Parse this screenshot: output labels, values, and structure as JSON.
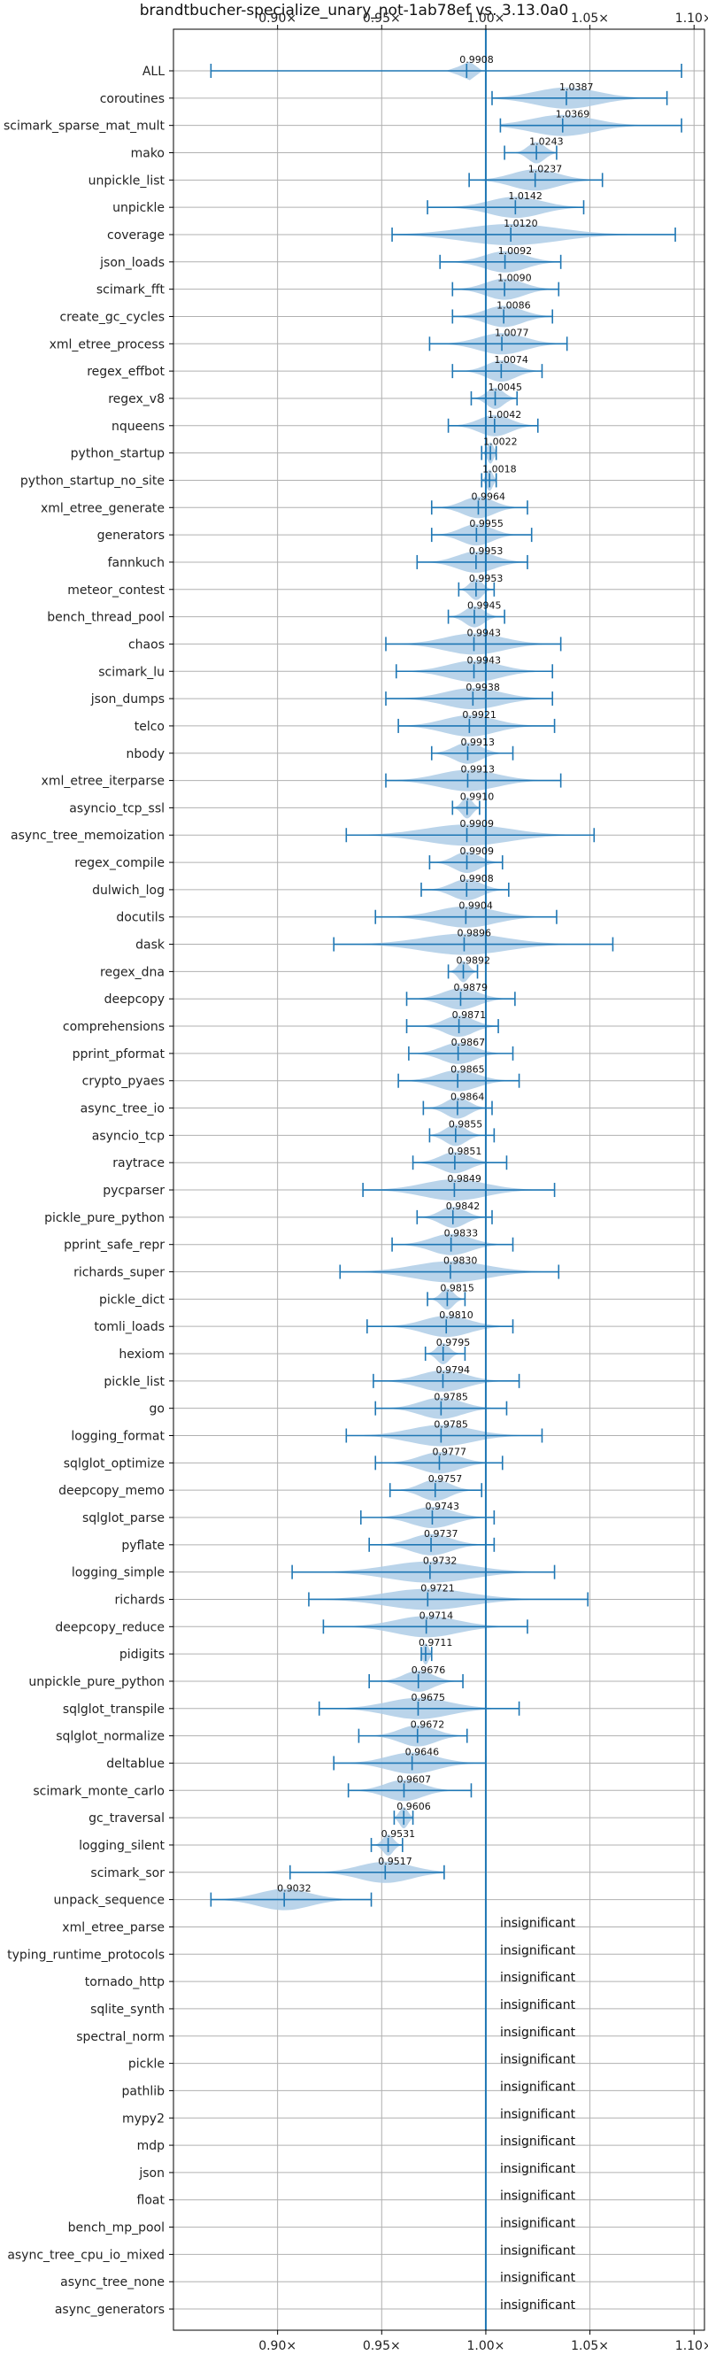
{
  "chart_data": {
    "type": "violin",
    "title": "brandtbucher-specialize_unary_not-1ab78ef vs. 3.13.0a0",
    "xlim": [
      0.85,
      1.105
    ],
    "x_ticks": [
      0.9,
      0.95,
      1.0,
      1.05,
      1.1
    ],
    "x_tick_labels": [
      "0.90×",
      "0.95×",
      "1.00×",
      "1.05×",
      "1.10×"
    ],
    "reference_line": 1.0,
    "grid": true,
    "colors": {
      "violin": "#aecde6",
      "line": "#1f77b4",
      "grid": "#b0b0b0"
    },
    "insignificant_text": "insignificant",
    "benchmarks": [
      {
        "name": "ALL",
        "label": "0.9908",
        "median": 0.9908,
        "min": 0.868,
        "max": 1.094,
        "spread": 0.006
      },
      {
        "name": "coroutines",
        "label": "1.0387",
        "median": 1.0387,
        "min": 1.003,
        "max": 1.087,
        "spread": 0.03
      },
      {
        "name": "scimark_sparse_mat_mult",
        "label": "1.0369",
        "median": 1.0369,
        "min": 1.007,
        "max": 1.094,
        "spread": 0.03
      },
      {
        "name": "mako",
        "label": "1.0243",
        "median": 1.0243,
        "min": 1.009,
        "max": 1.034,
        "spread": 0.008
      },
      {
        "name": "unpickle_list",
        "label": "1.0237",
        "median": 1.0237,
        "min": 0.992,
        "max": 1.056,
        "spread": 0.022
      },
      {
        "name": "unpickle",
        "label": "1.0142",
        "median": 1.0142,
        "min": 0.972,
        "max": 1.047,
        "spread": 0.025
      },
      {
        "name": "coverage",
        "label": "1.0120",
        "median": 1.012,
        "min": 0.955,
        "max": 1.091,
        "spread": 0.045
      },
      {
        "name": "json_loads",
        "label": "1.0092",
        "median": 1.0092,
        "min": 0.978,
        "max": 1.036,
        "spread": 0.02
      },
      {
        "name": "scimark_fft",
        "label": "1.0090",
        "median": 1.009,
        "min": 0.984,
        "max": 1.035,
        "spread": 0.018
      },
      {
        "name": "create_gc_cycles",
        "label": "1.0086",
        "median": 1.0086,
        "min": 0.984,
        "max": 1.032,
        "spread": 0.018
      },
      {
        "name": "xml_etree_process",
        "label": "1.0077",
        "median": 1.0077,
        "min": 0.973,
        "max": 1.039,
        "spread": 0.022
      },
      {
        "name": "regex_effbot",
        "label": "1.0074",
        "median": 1.0074,
        "min": 0.984,
        "max": 1.027,
        "spread": 0.014
      },
      {
        "name": "regex_v8",
        "label": "1.0045",
        "median": 1.0045,
        "min": 0.993,
        "max": 1.015,
        "spread": 0.008
      },
      {
        "name": "nqueens",
        "label": "1.0042",
        "median": 1.0042,
        "min": 0.982,
        "max": 1.025,
        "spread": 0.015
      },
      {
        "name": "python_startup",
        "label": "1.0022",
        "median": 1.0022,
        "min": 0.998,
        "max": 1.005,
        "spread": 0.003
      },
      {
        "name": "python_startup_no_site",
        "label": "1.0018",
        "median": 1.0018,
        "min": 0.998,
        "max": 1.005,
        "spread": 0.003
      },
      {
        "name": "xml_etree_generate",
        "label": "0.9964",
        "median": 0.9964,
        "min": 0.974,
        "max": 1.02,
        "spread": 0.015
      },
      {
        "name": "generators",
        "label": "0.9955",
        "median": 0.9955,
        "min": 0.974,
        "max": 1.022,
        "spread": 0.015
      },
      {
        "name": "fannkuch",
        "label": "0.9953",
        "median": 0.9953,
        "min": 0.967,
        "max": 1.02,
        "spread": 0.018
      },
      {
        "name": "meteor_contest",
        "label": "0.9953",
        "median": 0.9953,
        "min": 0.987,
        "max": 1.004,
        "spread": 0.006
      },
      {
        "name": "bench_thread_pool",
        "label": "0.9945",
        "median": 0.9945,
        "min": 0.982,
        "max": 1.009,
        "spread": 0.009
      },
      {
        "name": "chaos",
        "label": "0.9943",
        "median": 0.9943,
        "min": 0.952,
        "max": 1.036,
        "spread": 0.028
      },
      {
        "name": "scimark_lu",
        "label": "0.9943",
        "median": 0.9943,
        "min": 0.957,
        "max": 1.032,
        "spread": 0.025
      },
      {
        "name": "json_dumps",
        "label": "0.9938",
        "median": 0.9938,
        "min": 0.952,
        "max": 1.032,
        "spread": 0.027
      },
      {
        "name": "telco",
        "label": "0.9921",
        "median": 0.9921,
        "min": 0.958,
        "max": 1.033,
        "spread": 0.025
      },
      {
        "name": "nbody",
        "label": "0.9913",
        "median": 0.9913,
        "min": 0.974,
        "max": 1.013,
        "spread": 0.013
      },
      {
        "name": "xml_etree_iterparse",
        "label": "0.9913",
        "median": 0.9913,
        "min": 0.952,
        "max": 1.036,
        "spread": 0.028
      },
      {
        "name": "asyncio_tcp_ssl",
        "label": "0.9910",
        "median": 0.991,
        "min": 0.984,
        "max": 0.997,
        "spread": 0.005
      },
      {
        "name": "async_tree_memoization",
        "label": "0.9909",
        "median": 0.9909,
        "min": 0.933,
        "max": 1.052,
        "spread": 0.04
      },
      {
        "name": "regex_compile",
        "label": "0.9909",
        "median": 0.9909,
        "min": 0.973,
        "max": 1.008,
        "spread": 0.012
      },
      {
        "name": "dulwich_log",
        "label": "0.9908",
        "median": 0.9908,
        "min": 0.969,
        "max": 1.011,
        "spread": 0.014
      },
      {
        "name": "docutils",
        "label": "0.9904",
        "median": 0.9904,
        "min": 0.947,
        "max": 1.034,
        "spread": 0.028
      },
      {
        "name": "dask",
        "label": "0.9896",
        "median": 0.9896,
        "min": 0.927,
        "max": 1.061,
        "spread": 0.04
      },
      {
        "name": "regex_dna",
        "label": "0.9892",
        "median": 0.9892,
        "min": 0.982,
        "max": 0.996,
        "spread": 0.005
      },
      {
        "name": "deepcopy",
        "label": "0.9879",
        "median": 0.9879,
        "min": 0.962,
        "max": 1.014,
        "spread": 0.017
      },
      {
        "name": "comprehensions",
        "label": "0.9871",
        "median": 0.9871,
        "min": 0.962,
        "max": 1.006,
        "spread": 0.014
      },
      {
        "name": "pprint_pformat",
        "label": "0.9867",
        "median": 0.9867,
        "min": 0.963,
        "max": 1.013,
        "spread": 0.016
      },
      {
        "name": "crypto_pyaes",
        "label": "0.9865",
        "median": 0.9865,
        "min": 0.958,
        "max": 1.016,
        "spread": 0.019
      },
      {
        "name": "async_tree_io",
        "label": "0.9864",
        "median": 0.9864,
        "min": 0.97,
        "max": 1.003,
        "spread": 0.011
      },
      {
        "name": "asyncio_tcp",
        "label": "0.9855",
        "median": 0.9855,
        "min": 0.973,
        "max": 1.004,
        "spread": 0.01
      },
      {
        "name": "raytrace",
        "label": "0.9851",
        "median": 0.9851,
        "min": 0.965,
        "max": 1.01,
        "spread": 0.014
      },
      {
        "name": "pycparser",
        "label": "0.9849",
        "median": 0.9849,
        "min": 0.941,
        "max": 1.033,
        "spread": 0.03
      },
      {
        "name": "pickle_pure_python",
        "label": "0.9842",
        "median": 0.9842,
        "min": 0.967,
        "max": 1.003,
        "spread": 0.012
      },
      {
        "name": "pprint_safe_repr",
        "label": "0.9833",
        "median": 0.9833,
        "min": 0.955,
        "max": 1.013,
        "spread": 0.019
      },
      {
        "name": "richards_super",
        "label": "0.9830",
        "median": 0.983,
        "min": 0.93,
        "max": 1.035,
        "spread": 0.035
      },
      {
        "name": "pickle_dict",
        "label": "0.9815",
        "median": 0.9815,
        "min": 0.972,
        "max": 0.99,
        "spread": 0.006
      },
      {
        "name": "tomli_loads",
        "label": "0.9810",
        "median": 0.981,
        "min": 0.943,
        "max": 1.013,
        "spread": 0.022
      },
      {
        "name": "hexiom",
        "label": "0.9795",
        "median": 0.9795,
        "min": 0.971,
        "max": 0.99,
        "spread": 0.006
      },
      {
        "name": "pickle_list",
        "label": "0.9794",
        "median": 0.9794,
        "min": 0.946,
        "max": 1.016,
        "spread": 0.022
      },
      {
        "name": "go",
        "label": "0.9785",
        "median": 0.9785,
        "min": 0.947,
        "max": 1.01,
        "spread": 0.02
      },
      {
        "name": "logging_format",
        "label": "0.9785",
        "median": 0.9785,
        "min": 0.933,
        "max": 1.027,
        "spread": 0.03
      },
      {
        "name": "sqlglot_optimize",
        "label": "0.9777",
        "median": 0.9777,
        "min": 0.947,
        "max": 1.008,
        "spread": 0.019
      },
      {
        "name": "deepcopy_memo",
        "label": "0.9757",
        "median": 0.9757,
        "min": 0.954,
        "max": 0.998,
        "spread": 0.014
      },
      {
        "name": "sqlglot_parse",
        "label": "0.9743",
        "median": 0.9743,
        "min": 0.94,
        "max": 1.004,
        "spread": 0.02
      },
      {
        "name": "pyflate",
        "label": "0.9737",
        "median": 0.9737,
        "min": 0.944,
        "max": 1.004,
        "spread": 0.019
      },
      {
        "name": "logging_simple",
        "label": "0.9732",
        "median": 0.9732,
        "min": 0.907,
        "max": 1.033,
        "spread": 0.04
      },
      {
        "name": "richards",
        "label": "0.9721",
        "median": 0.9721,
        "min": 0.915,
        "max": 1.049,
        "spread": 0.04
      },
      {
        "name": "deepcopy_reduce",
        "label": "0.9714",
        "median": 0.9714,
        "min": 0.922,
        "max": 1.02,
        "spread": 0.03
      },
      {
        "name": "pidigits",
        "label": "0.9711",
        "median": 0.9711,
        "min": 0.969,
        "max": 0.974,
        "spread": 0.003
      },
      {
        "name": "unpickle_pure_python",
        "label": "0.9676",
        "median": 0.9676,
        "min": 0.944,
        "max": 0.989,
        "spread": 0.014
      },
      {
        "name": "sqlglot_transpile",
        "label": "0.9675",
        "median": 0.9675,
        "min": 0.92,
        "max": 1.016,
        "spread": 0.03
      },
      {
        "name": "sqlglot_normalize",
        "label": "0.9672",
        "median": 0.9672,
        "min": 0.939,
        "max": 0.991,
        "spread": 0.017
      },
      {
        "name": "deltablue",
        "label": "0.9646",
        "median": 0.9646,
        "min": 0.927,
        "max": 1.0,
        "spread": 0.024
      },
      {
        "name": "scimark_monte_carlo",
        "label": "0.9607",
        "median": 0.9607,
        "min": 0.934,
        "max": 0.993,
        "spread": 0.018
      },
      {
        "name": "gc_traversal",
        "label": "0.9606",
        "median": 0.9606,
        "min": 0.956,
        "max": 0.965,
        "spread": 0.004
      },
      {
        "name": "logging_silent",
        "label": "0.9531",
        "median": 0.9531,
        "min": 0.945,
        "max": 0.96,
        "spread": 0.005
      },
      {
        "name": "scimark_sor",
        "label": "0.9517",
        "median": 0.9517,
        "min": 0.906,
        "max": 0.98,
        "spread": 0.025
      },
      {
        "name": "unpack_sequence",
        "label": "0.9032",
        "median": 0.9032,
        "min": 0.868,
        "max": 0.945,
        "spread": 0.025
      },
      {
        "name": "xml_etree_parse",
        "label": "insignificant",
        "insignificant": true
      },
      {
        "name": "typing_runtime_protocols",
        "label": "insignificant",
        "insignificant": true
      },
      {
        "name": "tornado_http",
        "label": "insignificant",
        "insignificant": true
      },
      {
        "name": "sqlite_synth",
        "label": "insignificant",
        "insignificant": true
      },
      {
        "name": "spectral_norm",
        "label": "insignificant",
        "insignificant": true
      },
      {
        "name": "pickle",
        "label": "insignificant",
        "insignificant": true
      },
      {
        "name": "pathlib",
        "label": "insignificant",
        "insignificant": true
      },
      {
        "name": "mypy2",
        "label": "insignificant",
        "insignificant": true
      },
      {
        "name": "mdp",
        "label": "insignificant",
        "insignificant": true
      },
      {
        "name": "json",
        "label": "insignificant",
        "insignificant": true
      },
      {
        "name": "float",
        "label": "insignificant",
        "insignificant": true
      },
      {
        "name": "bench_mp_pool",
        "label": "insignificant",
        "insignificant": true
      },
      {
        "name": "async_tree_cpu_io_mixed",
        "label": "insignificant",
        "insignificant": true
      },
      {
        "name": "async_tree_none",
        "label": "insignificant",
        "insignificant": true
      },
      {
        "name": "async_generators",
        "label": "insignificant",
        "insignificant": true
      }
    ]
  }
}
